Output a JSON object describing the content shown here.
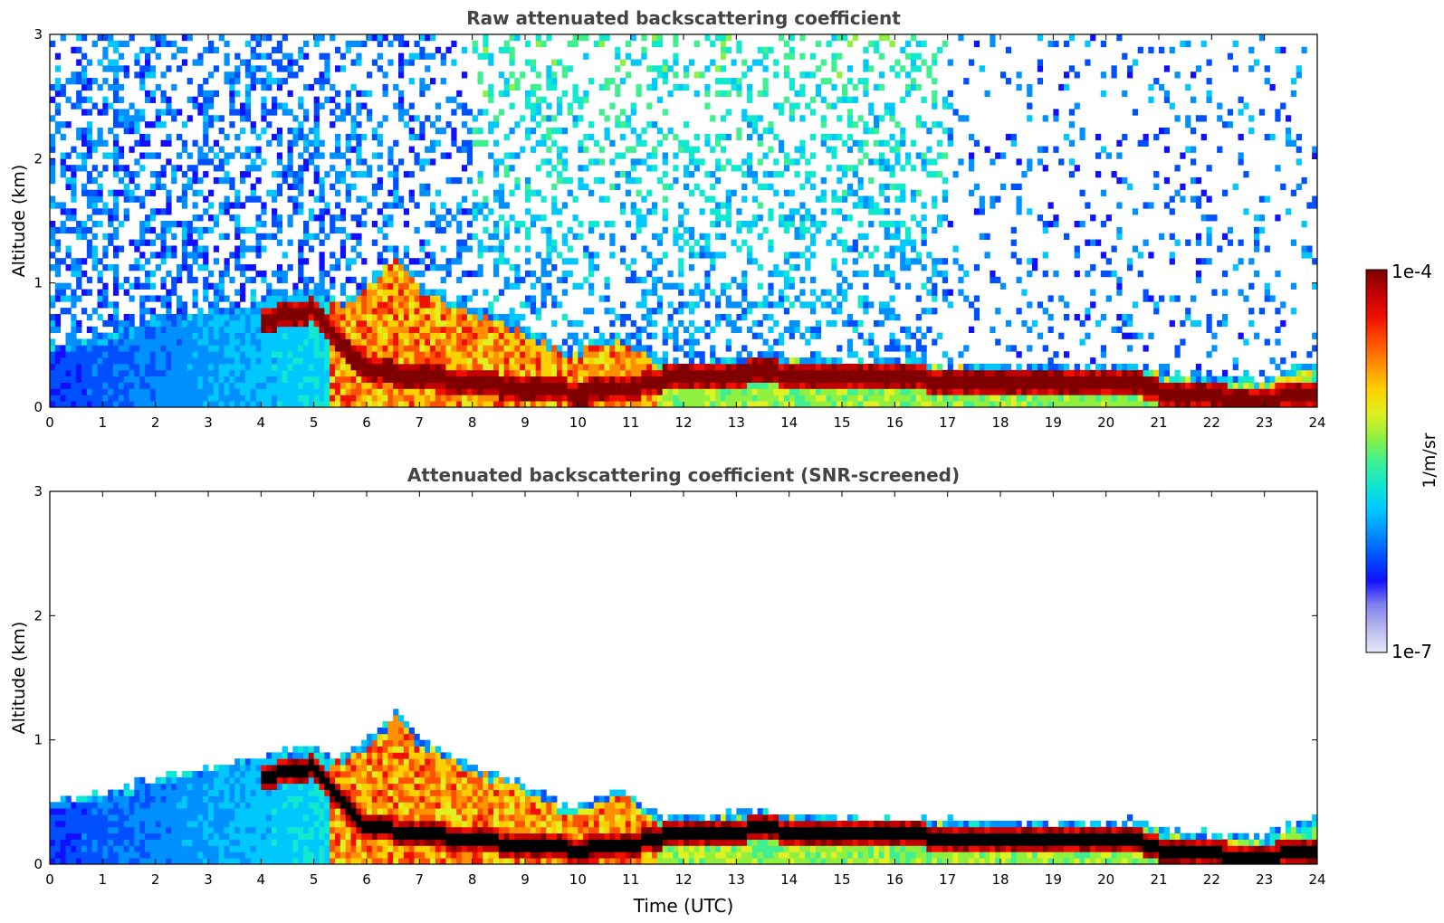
{
  "chart_data": [
    {
      "type": "heatmap",
      "title": "Raw attenuated backscattering coefficient",
      "xlabel": "",
      "ylabel": "Altitude (km)",
      "xlim": [
        0,
        24
      ],
      "ylim": [
        0,
        3
      ],
      "xticks": [
        "0",
        "1",
        "2",
        "3",
        "4",
        "5",
        "6",
        "7",
        "8",
        "9",
        "10",
        "11",
        "12",
        "13",
        "14",
        "15",
        "16",
        "17",
        "18",
        "19",
        "20",
        "21",
        "22",
        "23",
        "24"
      ],
      "yticks": [
        "0",
        "1",
        "2",
        "3"
      ],
      "grid": false,
      "variant": "raw"
    },
    {
      "type": "heatmap",
      "title": "Attenuated backscattering coefficient (SNR-screened)",
      "xlabel": "Time (UTC)",
      "ylabel": "Altitude (km)",
      "xlim": [
        0,
        24
      ],
      "ylim": [
        0,
        3
      ],
      "xticks": [
        "0",
        "1",
        "2",
        "3",
        "4",
        "5",
        "6",
        "7",
        "8",
        "9",
        "10",
        "11",
        "12",
        "13",
        "14",
        "15",
        "16",
        "17",
        "18",
        "19",
        "20",
        "21",
        "22",
        "23",
        "24"
      ],
      "yticks": [
        "0",
        "1",
        "2",
        "3"
      ],
      "grid": false,
      "variant": "screened"
    }
  ],
  "colorbar": {
    "label": "1/m/sr",
    "max_label": "1e-4",
    "min_label": "1e-7",
    "colors": [
      "#e8e8f8",
      "#b8b8ee",
      "#8080f0",
      "#1010ff",
      "#0050ff",
      "#0090ff",
      "#00c8ff",
      "#10e8d0",
      "#40f090",
      "#90f040",
      "#e0f020",
      "#ffd000",
      "#ff9000",
      "#ff5000",
      "#f01000",
      "#c00000",
      "#800000"
    ]
  }
}
